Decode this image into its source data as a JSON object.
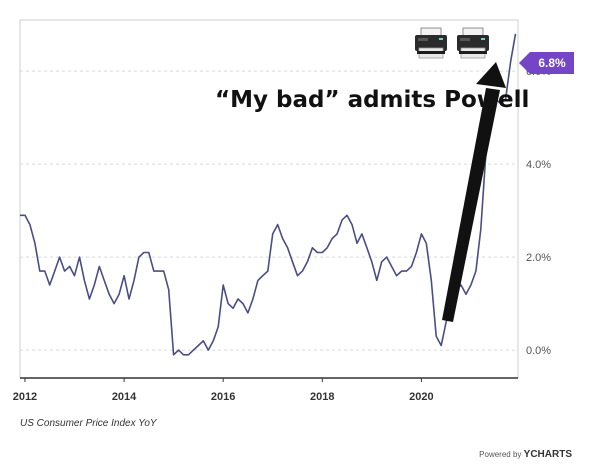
{
  "chart_data": {
    "type": "line",
    "title": "",
    "xlabel": "",
    "ylabel": "",
    "x_ticks": [
      "2012",
      "2014",
      "2016",
      "2018",
      "2020"
    ],
    "y_ticks": [
      "0.0%",
      "2.0%",
      "4.0%",
      "6.0%"
    ],
    "ylim": [
      -0.6,
      7.1
    ],
    "xlim": [
      2011.9,
      2021.95
    ],
    "grid": true,
    "series": [
      {
        "name": "US Consumer Price Index YoY",
        "color": "#4a4d86",
        "x": [
          2011.9,
          2012.0,
          2012.1,
          2012.2,
          2012.3,
          2012.4,
          2012.5,
          2012.6,
          2012.7,
          2012.8,
          2012.9,
          2013.0,
          2013.1,
          2013.2,
          2013.3,
          2013.4,
          2013.5,
          2013.6,
          2013.7,
          2013.8,
          2013.9,
          2014.0,
          2014.1,
          2014.2,
          2014.3,
          2014.4,
          2014.5,
          2014.6,
          2014.7,
          2014.8,
          2014.9,
          2015.0,
          2015.1,
          2015.2,
          2015.3,
          2015.4,
          2015.5,
          2015.6,
          2015.7,
          2015.8,
          2015.9,
          2016.0,
          2016.1,
          2016.2,
          2016.3,
          2016.4,
          2016.5,
          2016.6,
          2016.7,
          2016.8,
          2016.9,
          2017.0,
          2017.1,
          2017.2,
          2017.3,
          2017.4,
          2017.5,
          2017.6,
          2017.7,
          2017.8,
          2017.9,
          2018.0,
          2018.1,
          2018.2,
          2018.3,
          2018.4,
          2018.5,
          2018.6,
          2018.7,
          2018.8,
          2018.9,
          2019.0,
          2019.1,
          2019.2,
          2019.3,
          2019.4,
          2019.5,
          2019.6,
          2019.7,
          2019.8,
          2019.9,
          2020.0,
          2020.1,
          2020.2,
          2020.3,
          2020.4,
          2020.5,
          2020.6,
          2020.7,
          2020.8,
          2020.9,
          2021.0,
          2021.1,
          2021.2,
          2021.3,
          2021.4,
          2021.5,
          2021.6,
          2021.7,
          2021.8,
          2021.9
        ],
        "values": [
          2.9,
          2.9,
          2.7,
          2.3,
          1.7,
          1.7,
          1.4,
          1.7,
          2.0,
          1.7,
          1.8,
          1.6,
          2.0,
          1.5,
          1.1,
          1.4,
          1.8,
          1.5,
          1.2,
          1.0,
          1.2,
          1.6,
          1.1,
          1.5,
          2.0,
          2.1,
          2.1,
          1.7,
          1.7,
          1.7,
          1.3,
          -0.1,
          0.0,
          -0.1,
          -0.1,
          0.0,
          0.1,
          0.2,
          0.0,
          0.2,
          0.5,
          1.4,
          1.0,
          0.9,
          1.1,
          1.0,
          0.8,
          1.1,
          1.5,
          1.6,
          1.7,
          2.5,
          2.7,
          2.4,
          2.2,
          1.9,
          1.6,
          1.7,
          1.9,
          2.2,
          2.1,
          2.1,
          2.2,
          2.4,
          2.5,
          2.8,
          2.9,
          2.7,
          2.3,
          2.5,
          2.2,
          1.9,
          1.5,
          1.9,
          2.0,
          1.8,
          1.6,
          1.7,
          1.7,
          1.8,
          2.1,
          2.5,
          2.3,
          1.5,
          0.3,
          0.1,
          0.6,
          1.0,
          1.3,
          1.4,
          1.2,
          1.4,
          1.7,
          2.6,
          4.2,
          5.0,
          5.4,
          5.3,
          5.4,
          6.2,
          6.8
        ]
      }
    ],
    "annotations": {
      "headline": "“My bad” admits Powell",
      "last_value": "6.8%"
    },
    "source_label": "US Consumer Price Index YoY",
    "brand_prefix": "Powered by",
    "brand_name": "YCHARTS"
  },
  "colors": {
    "line": "#4a4d86",
    "callout": "#7445c4",
    "arrow": "#111111"
  },
  "icons": [
    "printer-icon",
    "printer-icon"
  ]
}
